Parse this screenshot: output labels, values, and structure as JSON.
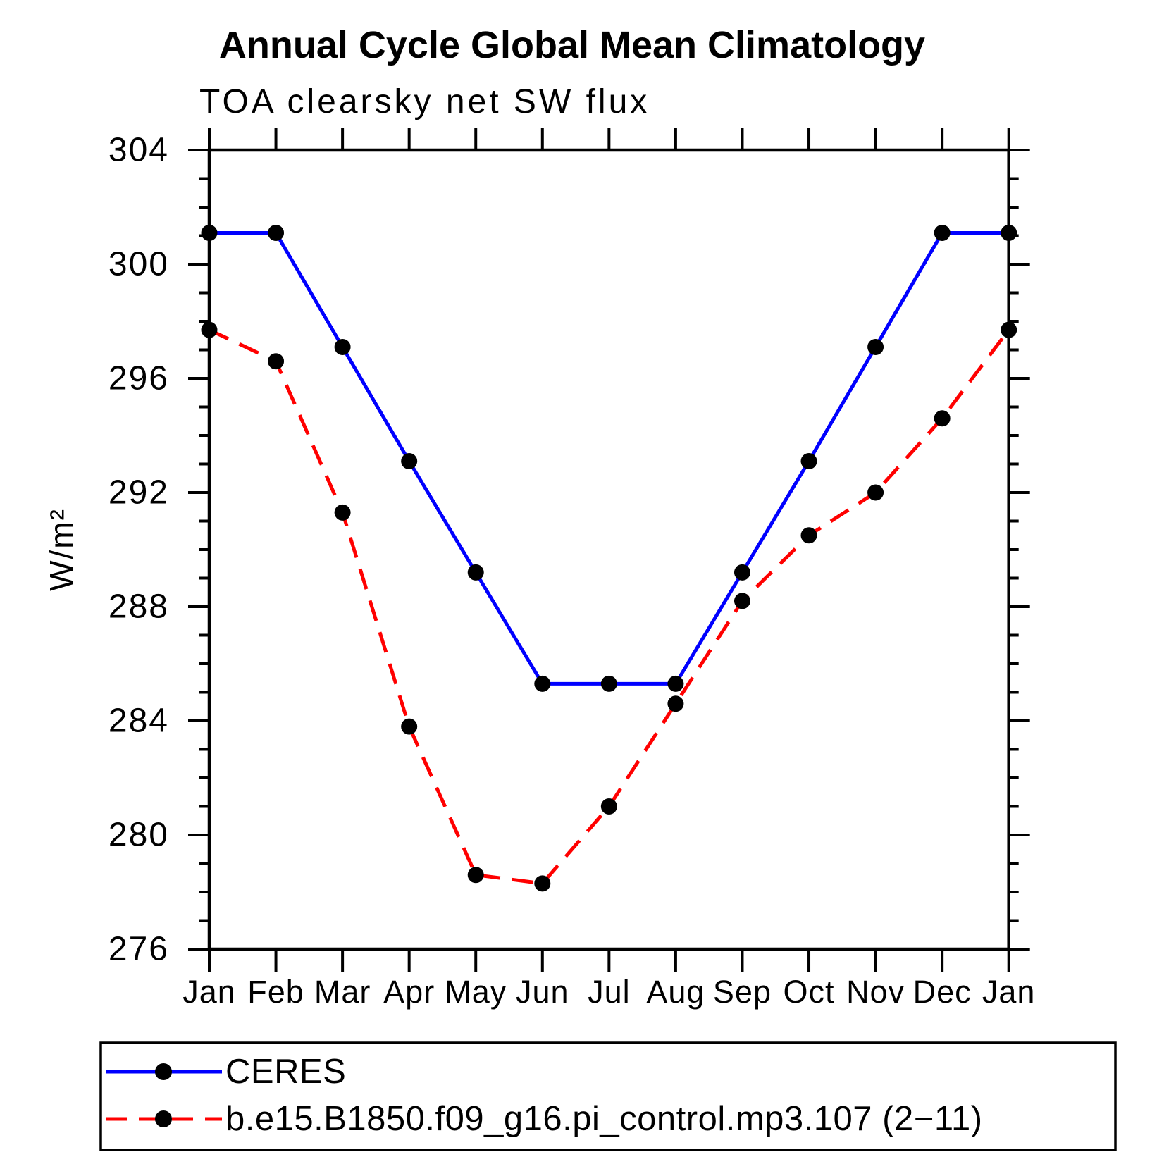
{
  "chart_data": {
    "type": "line",
    "title": "Annual Cycle Global Mean Climatology",
    "subtitle": "TOA clearsky net SW flux",
    "ylabel": "W/m²",
    "xlabel": "",
    "categories": [
      "Jan",
      "Feb",
      "Mar",
      "Apr",
      "May",
      "Jun",
      "Jul",
      "Aug",
      "Sep",
      "Oct",
      "Nov",
      "Dec",
      "Jan"
    ],
    "ylim": [
      276,
      304
    ],
    "ytick_major_step": 4,
    "ytick_minor_step": 1,
    "ytick_labels": [
      "276",
      "280",
      "284",
      "288",
      "292",
      "296",
      "300",
      "304"
    ],
    "grid": false,
    "legend_position": "bottom-left box",
    "marker": "filled-circle",
    "marker_color": "#000000",
    "axis_color": "#000000",
    "series": [
      {
        "name": "CERES",
        "color": "#0000ff",
        "line_style": "solid",
        "values": [
          301.1,
          301.1,
          297.1,
          293.1,
          289.2,
          285.3,
          285.3,
          285.3,
          289.2,
          293.1,
          297.1,
          301.1,
          301.1
        ]
      },
      {
        "name": "b.e15.B1850.f09_g16.pi_control.mp3.107 (2−11)",
        "color": "#ff0000",
        "line_style": "dashed",
        "values": [
          297.7,
          296.6,
          291.3,
          283.8,
          278.6,
          278.3,
          281.0,
          284.6,
          288.2,
          290.5,
          292.0,
          294.6,
          297.7
        ]
      }
    ]
  }
}
